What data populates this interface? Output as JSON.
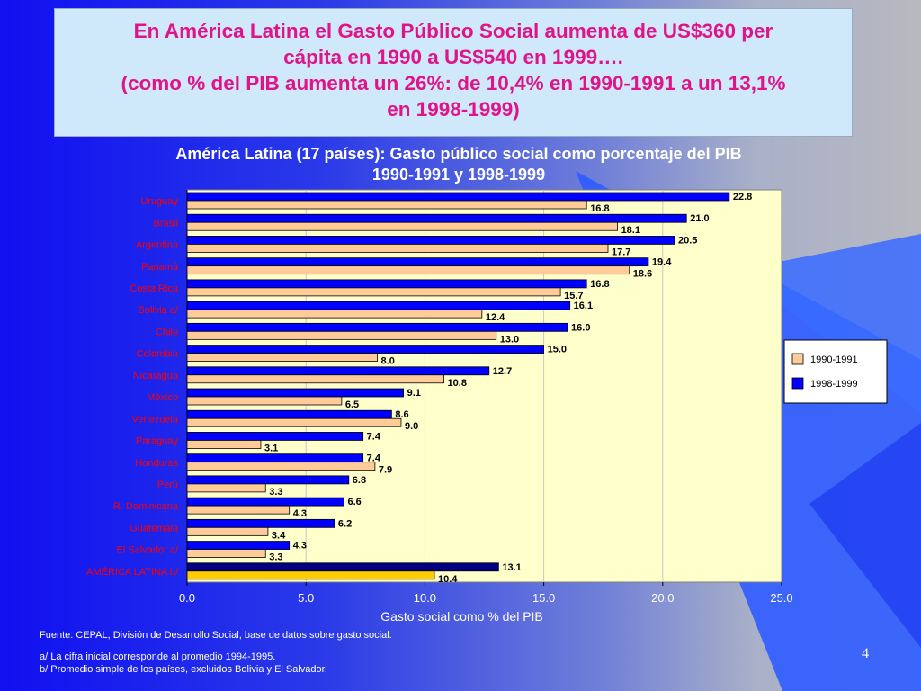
{
  "header": {
    "lines": [
      "En América Latina el Gasto Público Social aumenta de US$360 per",
      "cápita en 1990 a US$540 en 1999….",
      "(como % del PIB aumenta un 26%: de 10,4% en 1990-1991 a un 13,1%",
      "en 1998-1999)"
    ]
  },
  "chart_title": {
    "line1": "América Latina (17 países): Gasto público social como porcentaje del PIB",
    "line2": "1990-1991 y 1998-1999"
  },
  "chart_data": {
    "type": "bar",
    "orientation": "horizontal",
    "categories": [
      "Uruguay",
      "Brasil",
      "Argentina",
      "Panamá",
      "Costa Rica",
      "Bolivia a/",
      "Chile",
      "Colombia",
      "Nicaragua",
      "México",
      "Venezuela",
      "Paraguay",
      "Honduras",
      "Perú",
      "R. Dominicana",
      "Guatemala",
      "El Salvador a/",
      "AMÉRICA LATINA b/"
    ],
    "series": [
      {
        "name": "1998-1999",
        "color": "#0000ff",
        "highlight_color": "#000080",
        "values": [
          22.8,
          21.0,
          20.5,
          19.4,
          16.8,
          16.1,
          16.0,
          15.0,
          12.7,
          9.1,
          8.6,
          7.4,
          7.4,
          6.8,
          6.6,
          6.2,
          4.3,
          13.1
        ],
        "labels": [
          "22.8",
          "21.0",
          "20.5",
          "19.4",
          "16.8",
          "16.1",
          "16.0",
          "15.0",
          "12.7",
          "9.1",
          "8.6",
          "7.4",
          "7.4",
          "6.8",
          "6.6",
          "6.2",
          "4.3",
          "13.1"
        ]
      },
      {
        "name": "1990-1991",
        "color": "#ffcc99",
        "highlight_color": "#ffcc00",
        "values": [
          16.8,
          18.1,
          17.7,
          18.6,
          15.7,
          12.4,
          13.0,
          8.0,
          10.8,
          6.5,
          9.0,
          3.1,
          7.9,
          3.3,
          4.3,
          3.4,
          3.3,
          10.4
        ],
        "labels": [
          "16.8",
          "18.1",
          "17.7",
          "18.6",
          "15.7",
          "12.4",
          "13.0",
          "8.0",
          "10.8",
          "6.5",
          "9.0",
          "3.1",
          "7.9",
          "3.3",
          "4.3",
          "3.4",
          "3.3",
          "10.4"
        ]
      }
    ],
    "xlim": [
      0,
      25
    ],
    "xticks": [
      "0.0",
      "5.0",
      "10.0",
      "15.0",
      "20.0",
      "25.0"
    ],
    "xlabel": "Gasto social como % del PIB",
    "ylabel": "",
    "grid": "vertical",
    "legend_position": "right",
    "legend": [
      "1990-1991",
      "1998-1999"
    ],
    "category_label_color": "#ff0000"
  },
  "footnotes": {
    "source": "Fuente: CEPAL, División de Desarrollo Social, base de datos sobre gasto social.",
    "a": "a/ La cifra inicial corresponde al promedio 1994-1995.",
    "b": "b/ Promedio simple de los países, excluidos Bolivia y El Salvador."
  },
  "page_number": "4"
}
